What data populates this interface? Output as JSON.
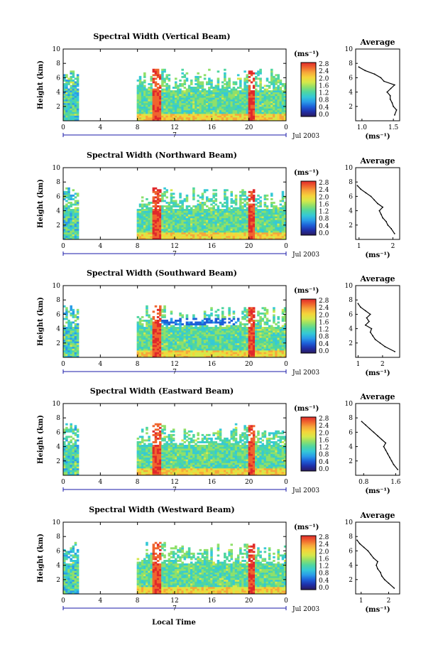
{
  "figure": {
    "xlabel": "Local Time",
    "date_label": "Jul 2003",
    "day_marker": "7",
    "unit_label": "(ms⁻¹)",
    "avg_unit": "(ms⁻¹)",
    "average_title": "Average",
    "y_axis_label": "Height (km)"
  },
  "chart_data": [
    {
      "type": "heatmap",
      "title": "Spectral Width (Vertical Beam)",
      "ylabel": "Height (km)",
      "xlabel": "Local Time",
      "x_ticks": [
        "0",
        "4",
        "8",
        "12",
        "16",
        "20",
        "0"
      ],
      "y_ticks": [
        "2",
        "4",
        "6",
        "8",
        "10"
      ],
      "xlim": [
        0,
        24
      ],
      "ylim": [
        0,
        10
      ],
      "colorbar_ticks": [
        "0.0",
        "0.4",
        "0.8",
        "1.2",
        "1.6",
        "2.0",
        "2.4",
        "2.8"
      ],
      "colorbar_range": [
        0.0,
        3.0
      ],
      "data_gaps": [
        [
          1.6,
          8.0
        ]
      ],
      "average_profile": {
        "title": "Average",
        "xlabel": "(ms⁻¹)",
        "x_ticks": [
          "1.0",
          "1.5"
        ],
        "xlim": [
          0.9,
          1.6
        ],
        "y_ticks": [
          "2",
          "4",
          "6",
          "8",
          "10"
        ],
        "height_km": [
          0.8,
          1.5,
          2.0,
          2.5,
          3.0,
          3.5,
          4.0,
          4.5,
          5.0,
          5.5,
          6.0,
          6.5,
          7.0,
          7.5
        ],
        "width_ms": [
          1.52,
          1.55,
          1.5,
          1.48,
          1.45,
          1.45,
          1.4,
          1.46,
          1.52,
          1.35,
          1.3,
          1.2,
          1.05,
          0.95
        ]
      }
    },
    {
      "type": "heatmap",
      "title": "Spectral Width (Northward Beam)",
      "ylabel": "Height (km)",
      "xlabel": "Local Time",
      "x_ticks": [
        "0",
        "4",
        "8",
        "12",
        "16",
        "20",
        "0"
      ],
      "y_ticks": [
        "2",
        "4",
        "6",
        "8",
        "10"
      ],
      "xlim": [
        0,
        24
      ],
      "ylim": [
        0,
        10
      ],
      "colorbar_ticks": [
        "0.0",
        "0.4",
        "0.8",
        "1.2",
        "1.6",
        "2.0",
        "2.4",
        "2.8"
      ],
      "colorbar_range": [
        0.0,
        3.0
      ],
      "data_gaps": [
        [
          1.6,
          8.0
        ]
      ],
      "average_profile": {
        "title": "Average",
        "xlabel": "(ms⁻¹)",
        "x_ticks": [
          "1",
          "2"
        ],
        "xlim": [
          0.9,
          2.2
        ],
        "y_ticks": [
          "2",
          "4",
          "6",
          "8",
          "10"
        ],
        "height_km": [
          0.8,
          1.5,
          2.0,
          2.5,
          3.0,
          3.5,
          4.0,
          4.5,
          5.0,
          5.5,
          6.0,
          6.5,
          7.0,
          7.5
        ],
        "width_ms": [
          2.05,
          1.95,
          1.85,
          1.8,
          1.7,
          1.65,
          1.6,
          1.7,
          1.55,
          1.45,
          1.35,
          1.2,
          1.05,
          0.95
        ]
      }
    },
    {
      "type": "heatmap",
      "title": "Spectral Width (Southward Beam)",
      "ylabel": "Height (km)",
      "xlabel": "Local Time",
      "x_ticks": [
        "0",
        "4",
        "8",
        "12",
        "16",
        "20",
        "0"
      ],
      "y_ticks": [
        "2",
        "4",
        "6",
        "8",
        "10"
      ],
      "xlim": [
        0,
        24
      ],
      "ylim": [
        0,
        10
      ],
      "colorbar_ticks": [
        "0.0",
        "0.4",
        "0.8",
        "1.2",
        "1.6",
        "2.0",
        "2.4",
        "2.8"
      ],
      "colorbar_range": [
        0.0,
        3.0
      ],
      "data_gaps": [
        [
          1.6,
          8.0
        ]
      ],
      "average_profile": {
        "title": "Average",
        "xlabel": "(ms⁻¹)",
        "x_ticks": [
          "1",
          "2"
        ],
        "xlim": [
          0.9,
          2.7
        ],
        "y_ticks": [
          "2",
          "4",
          "6",
          "8",
          "10"
        ],
        "height_km": [
          0.8,
          1.5,
          2.0,
          2.5,
          3.0,
          3.5,
          4.0,
          4.5,
          5.0,
          5.5,
          6.0,
          6.5,
          7.0,
          7.5
        ],
        "width_ms": [
          2.5,
          2.1,
          1.9,
          1.7,
          1.6,
          1.5,
          1.55,
          1.3,
          1.45,
          1.35,
          1.5,
          1.3,
          1.1,
          1.0
        ]
      }
    },
    {
      "type": "heatmap",
      "title": "Spectral Width (Eastward Beam)",
      "ylabel": "Height (km)",
      "xlabel": "Local Time",
      "x_ticks": [
        "0",
        "4",
        "8",
        "12",
        "16",
        "20",
        "0"
      ],
      "y_ticks": [
        "2",
        "4",
        "6",
        "8",
        "10"
      ],
      "xlim": [
        0,
        24
      ],
      "ylim": [
        0,
        10
      ],
      "colorbar_ticks": [
        "0.0",
        "0.4",
        "0.8",
        "1.2",
        "1.6",
        "2.0",
        "2.4",
        "2.8"
      ],
      "colorbar_range": [
        0.0,
        3.0
      ],
      "data_gaps": [
        [
          1.6,
          8.0
        ]
      ],
      "average_profile": {
        "title": "Average",
        "xlabel": "(ms⁻¹)",
        "x_ticks": [
          "0.8",
          "1.6"
        ],
        "xlim": [
          0.6,
          1.7
        ],
        "y_ticks": [
          "2",
          "4",
          "6",
          "8",
          "10"
        ],
        "height_km": [
          0.8,
          1.5,
          2.0,
          2.5,
          3.0,
          3.5,
          4.0,
          4.5,
          5.0,
          5.5,
          6.0,
          6.5,
          7.0,
          7.5
        ],
        "width_ms": [
          1.65,
          1.55,
          1.5,
          1.45,
          1.4,
          1.35,
          1.3,
          1.35,
          1.25,
          1.15,
          1.05,
          0.95,
          0.85,
          0.75
        ]
      }
    },
    {
      "type": "heatmap",
      "title": "Spectral Width (Westward Beam)",
      "ylabel": "Height (km)",
      "xlabel": "Local Time",
      "x_ticks": [
        "0",
        "4",
        "8",
        "12",
        "16",
        "20",
        "0"
      ],
      "y_ticks": [
        "2",
        "4",
        "6",
        "8",
        "10"
      ],
      "xlim": [
        0,
        24
      ],
      "ylim": [
        0,
        10
      ],
      "colorbar_ticks": [
        "0.0",
        "0.4",
        "0.8",
        "1.2",
        "1.6",
        "2.0",
        "2.4",
        "2.8"
      ],
      "colorbar_range": [
        0.0,
        3.0
      ],
      "data_gaps": [
        [
          1.6,
          8.0
        ]
      ],
      "average_profile": {
        "title": "Average",
        "xlabel": "(ms⁻¹)",
        "x_ticks": [
          "1",
          "2"
        ],
        "xlim": [
          0.8,
          2.4
        ],
        "y_ticks": [
          "2",
          "4",
          "6",
          "8",
          "10"
        ],
        "height_km": [
          0.8,
          1.5,
          2.0,
          2.5,
          3.0,
          3.5,
          4.0,
          4.5,
          5.0,
          5.5,
          6.0,
          6.5,
          7.0,
          7.5
        ],
        "width_ms": [
          2.2,
          2.0,
          1.85,
          1.75,
          1.7,
          1.6,
          1.55,
          1.6,
          1.45,
          1.35,
          1.25,
          1.1,
          0.95,
          0.85
        ]
      }
    }
  ],
  "colors": {
    "scale": [
      "#2b1a5e",
      "#1f2fa8",
      "#1d5fd8",
      "#2a9de8",
      "#35c9d6",
      "#4fd6a0",
      "#8fe06a",
      "#d6e84a",
      "#f5d43a",
      "#f6a63a",
      "#f0652e",
      "#e0292b"
    ],
    "axis": "#000000",
    "profile_line": "#000000",
    "marker": "#1a1aa8"
  }
}
